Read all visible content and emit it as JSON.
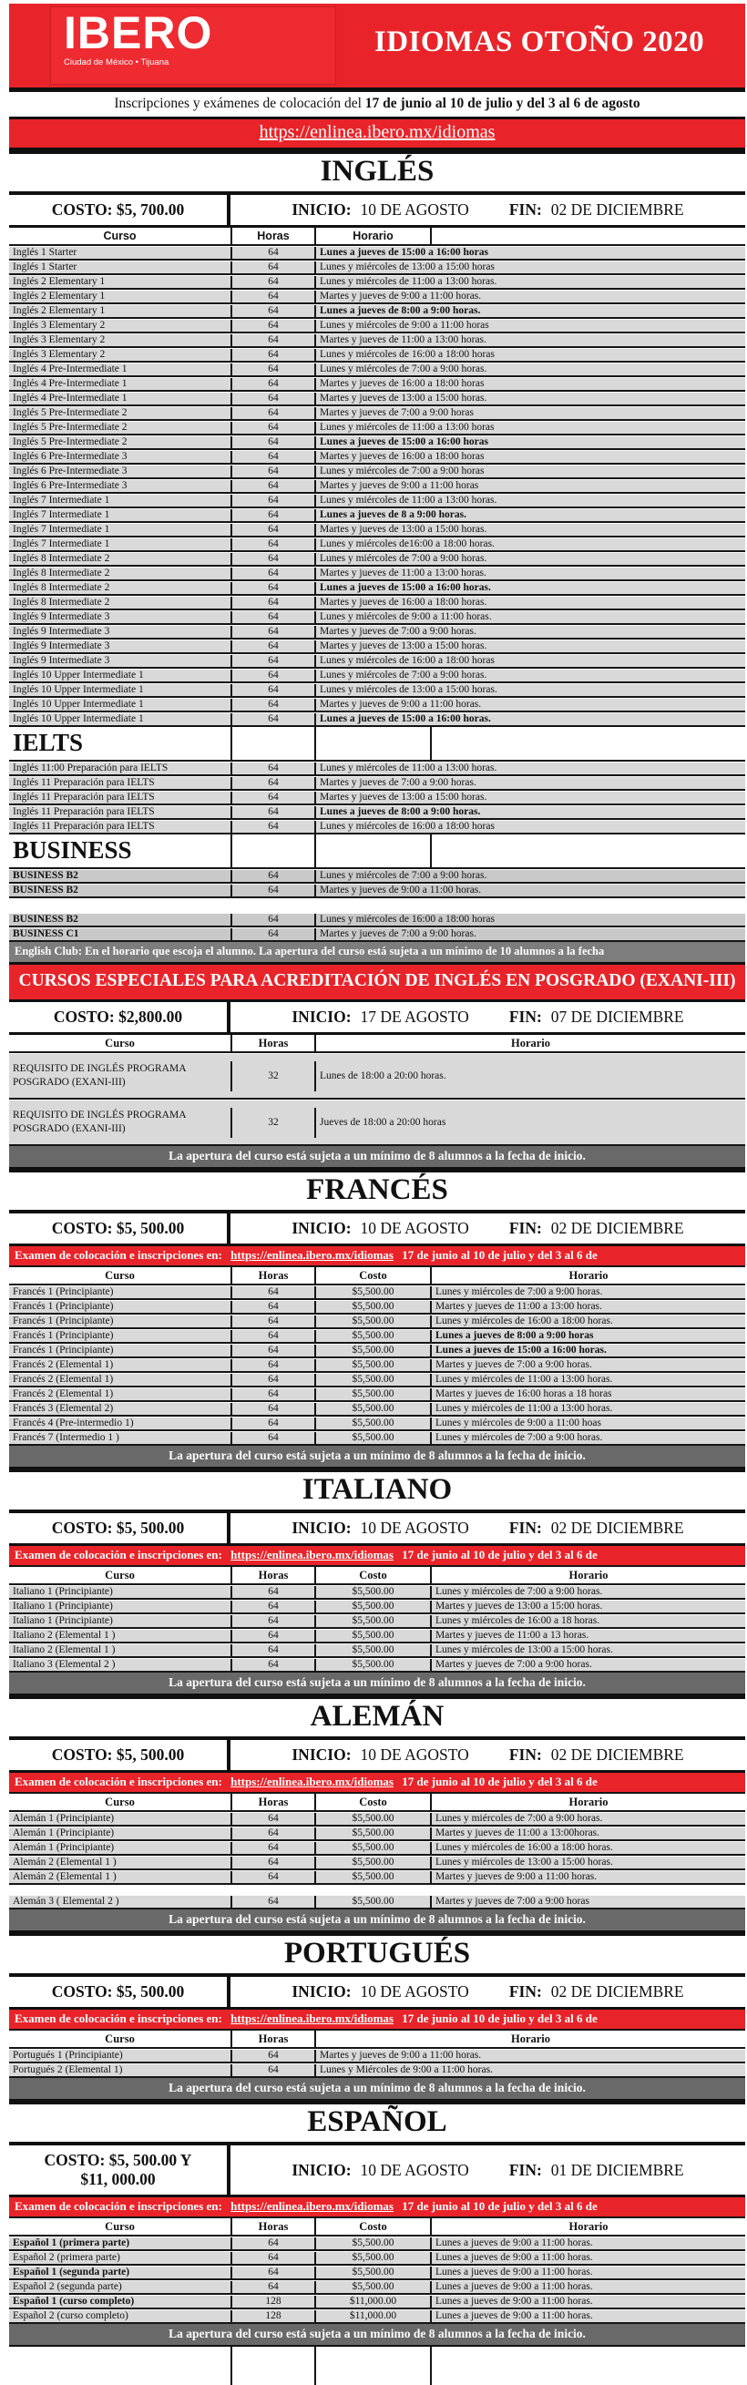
{
  "colors": {
    "brand_red": "#e8242a",
    "row_gray": "#d9d9d9",
    "business_gray": "#c9c9c9",
    "note_gray": "#696969",
    "club_gray": "#7d7d7d"
  },
  "header": {
    "logo_title": "IBERO",
    "logo_subtitle": "Ciudad de México • Tijuana",
    "title": "IDIOMAS OTOÑO 2020",
    "inscription_prefix": "Inscripciones y exámenes de colocación del ",
    "inscription_bold": "17 de junio al 10 de julio y del 3 al 6 de agosto",
    "link": "https://enlinea.ibero.mx/idiomas"
  },
  "exam_banner": {
    "prefix": "Examen de colocación e inscripciones en:",
    "link": "https://enlinea.ibero.mx/idiomas",
    "suffix": "17 de junio al 10 de julio y del 3 al 6 de"
  },
  "apertura_note": "La apertura del curso está sujeta a un mínimo de 8 alumnos a la fecha de inicio.",
  "ingles": {
    "title": "INGLÉS",
    "costo": "COSTO: $5, 700.00",
    "inicio_label": "INICIO:",
    "inicio_value": "10 DE AGOSTO",
    "fin_label": "FIN:",
    "fin_value": "02 DE DICIEMBRE",
    "columns": [
      "Curso",
      "Horas",
      "Horario"
    ],
    "rows": [
      {
        "curso": "Inglés 1 Starter",
        "horas": "64",
        "horario": "Lunes a jueves de 15:00 a 16:00 horas",
        "bold": true
      },
      {
        "curso": "Inglés 1 Starter",
        "horas": "64",
        "horario": "Lunes y miércoles de 13:00 a 15:00 horas"
      },
      {
        "curso": "Inglés 2   Elementary 1",
        "horas": "64",
        "horario": "Lunes y miércoles de 11:00 a 13:00 horas."
      },
      {
        "curso": "Inglés 2   Elementary 1",
        "horas": "64",
        "horario": "Martes y jueves  de  9:00 a 11:00 horas."
      },
      {
        "curso": "Inglés 2   Elementary 1",
        "horas": "64",
        "horario": "Lunes a jueves de 8:00 a 9:00 horas.",
        "bold": true
      },
      {
        "curso": "Inglés 3   Elementary 2",
        "horas": "64",
        "horario": "Lunes y miércoles de 9:00 a 11:00 horas"
      },
      {
        "curso": "Inglés 3   Elementary 2",
        "horas": "64",
        "horario": "Martes y  jueves de 11:00 a 13:00 horas."
      },
      {
        "curso": "Inglés 3   Elementary 2",
        "horas": "64",
        "horario": "Lunes y miércoles de 16:00 a 18:00 horas"
      },
      {
        "curso": "Inglés 4   Pre-Intermediate 1",
        "horas": "64",
        "horario": "Lunes y miércoles de 7:00 a 9:00 horas."
      },
      {
        "curso": "Inglés 4   Pre-Intermediate 1",
        "horas": "64",
        "horario": "Martes y jueves de 16:00 a 18:00 horas"
      },
      {
        "curso": "Inglés 4   Pre-Intermediate 1",
        "horas": "64",
        "horario": "Martes y jueves  de 13:00 a 15:00 horas."
      },
      {
        "curso": "Inglés 5   Pre-Intermediate 2",
        "horas": "64",
        "horario": "Martes y jueves de 7:00 a 9:00 horas"
      },
      {
        "curso": "Inglés 5   Pre-Intermediate 2",
        "horas": "64",
        "horario": "Lunes y miércoles de 11:00 a 13:00 horas"
      },
      {
        "curso": "Inglés 5   Pre-Intermediate 2",
        "horas": "64",
        "horario": "Lunes a jueves de 15:00 a 16:00 horas",
        "bold": true
      },
      {
        "curso": "Inglés 6    Pre-Intermediate 3",
        "horas": "64",
        "horario": "Martes y jueves de 16:00 a 18:00 horas"
      },
      {
        "curso": "Inglés 6    Pre-Intermediate 3",
        "horas": "64",
        "horario": "Lunes y miércoles de 7:00 a 9:00 horas"
      },
      {
        "curso": "Inglés 6    Pre-Intermediate 3",
        "horas": "64",
        "horario": "Martes y jueves  de 9:00 a 11:00 horas"
      },
      {
        "curso": "Inglés 7    Intermediate 1",
        "horas": "64",
        "horario": "Lunes y miércoles  de 11:00 a 13:00 horas."
      },
      {
        "curso": "Inglés 7    Intermediate 1",
        "horas": "64",
        "horario": "Lunes a jueves de 8 a 9:00 horas.",
        "bold": true
      },
      {
        "curso": "Inglés 7    Intermediate 1",
        "horas": "64",
        "horario": "Martes y jueves de 13:00 a 15:00 horas."
      },
      {
        "curso": "Inglés 7    Intermediate 1",
        "horas": "64",
        "horario": "Lunes y miércoles de16:00 a 18:00 horas."
      },
      {
        "curso": "Inglés 8    Intermediate 2",
        "horas": "64",
        "horario": "Lunes y miércoles de 7:00 a 9:00 horas."
      },
      {
        "curso": "Inglés 8    Intermediate 2",
        "horas": "64",
        "horario": "Martes y jueves de 11:00 a 13:00 horas."
      },
      {
        "curso": "Inglés 8    Intermediate 2",
        "horas": "64",
        "horario": "Lunes a jueves de 15:00 a 16:00 horas.",
        "bold": true
      },
      {
        "curso": "Inglés 8    Intermediate 2",
        "horas": "64",
        "horario": "Martes y jueves de 16:00 a 18:00 horas."
      },
      {
        "curso": "Inglés 9   Intermediate 3",
        "horas": "64",
        "horario": "Lunes y miércoles de 9:00 a 11:00 horas."
      },
      {
        "curso": "Inglés 9   Intermediate 3",
        "horas": "64",
        "horario": "Martes y jueves de 7:00 a 9:00 horas."
      },
      {
        "curso": "Inglés 9   Intermediate 3",
        "horas": "64",
        "horario": "Martes y  jueves de 13:00 a 15:00 horas."
      },
      {
        "curso": "Inglés 9   Intermediate 3",
        "horas": "64",
        "horario": "Lunes y miércoles de 16:00 a 18:00 horas"
      },
      {
        "curso": "Inglés 10  Upper Intermediate 1",
        "horas": "64",
        "horario": "Lunes y miércoles de 7:00 a 9:00 horas."
      },
      {
        "curso": "Inglés 10  Upper Intermediate 1",
        "horas": "64",
        "horario": "Lunes y miércoles de 13:00 a 15:00 horas."
      },
      {
        "curso": "Inglés 10  Upper Intermediate 1",
        "horas": "64",
        "horario": "Martes y  jueves de 9:00 a 11:00 horas."
      },
      {
        "curso": "Inglés 10  Upper Intermediate 1",
        "horas": "64",
        "horario": "Lunes a jueves de 15:00 a 16:00 horas.",
        "bold": true
      }
    ],
    "ielts": {
      "title": "IELTS",
      "rows": [
        {
          "curso": "Inglés 11:00  Preparación para IELTS",
          "horas": "64",
          "horario": "Lunes y miércoles de 11:00 a 13:00 horas."
        },
        {
          "curso": "Inglés 11  Preparación para IELTS",
          "horas": "64",
          "horario": "Martes y jueves de 7:00 a 9:00 horas."
        },
        {
          "curso": "Inglés 11  Preparación para IELTS",
          "horas": "64",
          "horario": "Martes y jueves de 13:00 a 15:00 horas."
        },
        {
          "curso": "Inglés 11  Preparación para IELTS",
          "horas": "64",
          "horario": "Lunes a jueves de 8:00 a 9:00 horas.",
          "bold": true
        },
        {
          "curso": "Inglés 11  Preparación para IELTS",
          "horas": "64",
          "horario": "Lunes y miércoles de 16:00 a 18:00 horas"
        }
      ]
    },
    "business": {
      "title": "BUSINESS",
      "rows_a": [
        {
          "curso": "BUSINESS B2",
          "horas": "64",
          "horario": "Lunes y miércoles de 7:00 a 9:00 horas."
        },
        {
          "curso": "BUSINESS B2",
          "horas": "64",
          "horario": "Martes y jueves de 9:00 a 11:00 horas."
        }
      ],
      "rows_b": [
        {
          "curso": "BUSINESS B2",
          "horas": "64",
          "horario": "Lunes y miércoles de 16:00 a 18:00 horas"
        },
        {
          "curso": "BUSINESS C1",
          "horas": "64",
          "horario": "Martes y jueves de 7:00 a 9:00 horas."
        }
      ]
    },
    "english_club_note": "English Club: En el horario que escoja el alumno.  La apertura del curso está sujeta a un mínimo de 10 alumnos a la fecha"
  },
  "exani": {
    "banner": "CURSOS ESPECIALES PARA ACREDITACIÓN DE INGLÉS EN POSGRADO (EXANI-III)",
    "costo": "COSTO: $2,800.00",
    "inicio_label": "INICIO:",
    "inicio_value": "17 DE AGOSTO",
    "fin_label": "FIN:",
    "fin_value": "07 DE DICIEMBRE",
    "columns": [
      "Curso",
      "Horas",
      "Horario"
    ],
    "rows": [
      {
        "curso": "REQUISITO DE INGLÉS PROGRAMA POSGRADO (EXANI-III)",
        "horas": "32",
        "horario": "Lunes de 18:00 a 20:00 horas."
      },
      {
        "curso": "REQUISITO DE INGLÉS PROGRAMA POSGRADO (EXANI-III)",
        "horas": "32",
        "horario": "Jueves de 18:00 a 20:00 horas"
      }
    ]
  },
  "frances": {
    "title": "FRANCÉS",
    "costo": "COSTO: $5, 500.00",
    "inicio_label": "INICIO:",
    "inicio_value": "10 DE AGOSTO",
    "fin_label": "FIN:",
    "fin_value": "02 DE DICIEMBRE",
    "columns": [
      "Curso",
      "Horas",
      "Costo",
      "Horario"
    ],
    "rows": [
      {
        "curso": "Francés 1 (Principiante)",
        "horas": "64",
        "costo": "$5,500.00",
        "horario": "Lunes y miércoles de 7:00 a 9:00 horas."
      },
      {
        "curso": "Francés 1 (Principiante)",
        "horas": "64",
        "costo": "$5,500.00",
        "horario": "Martes y jueves de 11:00 a 13:00 horas."
      },
      {
        "curso": "Francés 1 (Principiante)",
        "horas": "64",
        "costo": "$5,500.00",
        "horario": "Lunes y miércoles de 16:00 a 18:00 horas."
      },
      {
        "curso": "Francés 1 (Principiante)",
        "horas": "64",
        "costo": "$5,500.00",
        "horario": "Lunes a jueves de 8:00 a 9:00 horas",
        "bold": true
      },
      {
        "curso": "Francés 1 (Principiante)",
        "horas": "64",
        "costo": "$5,500.00",
        "horario": "Lunes a jueves de 15:00 a 16:00 horas.",
        "bold": true
      },
      {
        "curso": "Francés 2 (Elemental 1)",
        "horas": "64",
        "costo": "$5,500.00",
        "horario": "Martes y jueves de 7:00 a 9:00 horas."
      },
      {
        "curso": "Francés 2 (Elemental 1)",
        "horas": "64",
        "costo": "$5,500.00",
        "horario": "Lunes y miércoles de 11:00 a 13:00 horas."
      },
      {
        "curso": "Francés 2 (Elemental 1)",
        "horas": "64",
        "costo": "$5,500.00",
        "horario": "Martes y jueves de 16:00 horas a 18 horas"
      },
      {
        "curso": "Francés 3 (Elemental 2)",
        "horas": "64",
        "costo": "$5,500.00",
        "horario": "Lunes y miércoles de 11:00 a 13:00 horas."
      },
      {
        "curso": "Francés 4 (Pre-intermedio 1)",
        "horas": "64",
        "costo": "$5,500.00",
        "horario": "Lunes y miércoles de 9:00 a 11:00 hoas"
      },
      {
        "curso": "Francés 7 (Intermedio 1 )",
        "horas": "64",
        "costo": "$5,500.00",
        "horario": "Lunes y miércoles de 7:00 a 9:00 horas."
      }
    ]
  },
  "italiano": {
    "title": "ITALIANO",
    "costo": "COSTO: $5, 500.00",
    "inicio_label": "INICIO:",
    "inicio_value": "10 DE AGOSTO",
    "fin_label": "FIN:",
    "fin_value": "02 DE DICIEMBRE",
    "columns": [
      "Curso",
      "Horas",
      "Costo",
      "Horario"
    ],
    "rows": [
      {
        "curso": "Italiano 1 (Principiante)",
        "horas": "64",
        "costo": "$5,500.00",
        "horario": "Lunes y miércoles de 7:00 a 9:00 horas."
      },
      {
        "curso": "Italiano 1 (Principiante)",
        "horas": "64",
        "costo": "$5,500.00",
        "horario": "Martes y jueves de 13:00 a 15:00 horas."
      },
      {
        "curso": "Italiano 1 (Principiante)",
        "horas": "64",
        "costo": "$5,500.00",
        "horario": "Lunes y miércoles de 16:00 a 18 horas."
      },
      {
        "curso": "Italiano 2 (Elemental 1 )",
        "horas": "64",
        "costo": "$5,500.00",
        "horario": "Martes y jueves de 11:00 a 13 horas."
      },
      {
        "curso": "Italiano 2 (Elemental 1 )",
        "horas": "64",
        "costo": "$5,500.00",
        "horario": "Lunes y miércoles de 13:00 a 15:00 horas."
      },
      {
        "curso": "Italiano 3 (Elemental 2 )",
        "horas": "64",
        "costo": "$5,500.00",
        "horario": "Martes y jueves de 7:00 a 9:00 horas."
      }
    ]
  },
  "aleman": {
    "title": "ALEMÁN",
    "costo": "COSTO: $5, 500.00",
    "inicio_label": "INICIO:",
    "inicio_value": "10 DE AGOSTO",
    "fin_label": "FIN:",
    "fin_value": "02 DE DICIEMBRE",
    "columns": [
      "Curso",
      "Horas",
      "Costo",
      "Horario"
    ],
    "rows_a": [
      {
        "curso": "Alemán 1 (Principiante)",
        "horas": "64",
        "costo": "$5,500.00",
        "horario": "Lunes y miércoles de 7:00 a 9:00 horas."
      },
      {
        "curso": "Alemán 1 (Principiante)",
        "horas": "64",
        "costo": "$5,500.00",
        "horario": "Martes y jueves de 11:00 a 13:00horas."
      },
      {
        "curso": "Alemán 1 (Principiante)",
        "horas": "64",
        "costo": "$5,500.00",
        "horario": "Lunes y miércoles de 16:00 a 18:00 horas."
      },
      {
        "curso": "Alemán 2  (Elemental 1 )",
        "horas": "64",
        "costo": "$5,500.00",
        "horario": "Lunes y miércoles de 13:00 a 15:00 horas."
      },
      {
        "curso": "Alemán 2  (Elemental 1 )",
        "horas": "64",
        "costo": "$5,500.00",
        "horario": "Martes y jueves de 9:00 a 11:00 horas."
      }
    ],
    "rows_b": [
      {
        "curso": "Alemán 3 ( Elemental 2 )",
        "horas": "64",
        "costo": "$5,500.00",
        "horario": "Martes y jueves de 7:00 a 9:00 horas"
      }
    ]
  },
  "portugues": {
    "title": "PORTUGUÉS",
    "costo": "COSTO: $5, 500.00",
    "inicio_label": "INICIO:",
    "inicio_value": "10 DE AGOSTO",
    "fin_label": "FIN:",
    "fin_value": "02 DE DICIEMBRE",
    "columns": [
      "Curso",
      "Horas",
      "Horario"
    ],
    "rows": [
      {
        "curso": "Portugués 1 (Principiante)",
        "horas": "64",
        "horario": "Martes y jueves de 9:00 a 11:00 horas."
      },
      {
        "curso": "Portugués 2 (Elemental 1)",
        "horas": "64",
        "horario": "Lunes y Miércoles de 9:00 a 11:00 horas."
      }
    ]
  },
  "espanol": {
    "title": "ESPAÑOL",
    "costo_line1": "COSTO: $5, 500.00 Y",
    "costo_line2": "$11, 000.00",
    "inicio_label": "INICIO:",
    "inicio_value": "10 DE AGOSTO",
    "fin_label": "FIN:",
    "fin_value": "01 DE DICIEMBRE",
    "columns": [
      "Curso",
      "Horas",
      "Costo",
      "Horario"
    ],
    "rows": [
      {
        "curso": "Español 1 (primera parte)",
        "horas": "64",
        "costo": "$5,500.00",
        "horario": "Lunes a jueves  de 9:00 a 11:00 horas.",
        "bold_curso": true
      },
      {
        "curso": "Español 2  (primera parte)",
        "horas": "64",
        "costo": "$5,500.00",
        "horario": "Lunes a jueves  de 9:00 a 11:00 horas."
      },
      {
        "curso": "Español 1 (segunda parte)",
        "horas": "64",
        "costo": "$5,500.00",
        "horario": "Lunes a jueves  de 9:00 a 11:00 horas.",
        "bold_curso": true
      },
      {
        "curso": "Español 2  (segunda parte)",
        "horas": "64",
        "costo": "$5,500.00",
        "horario": "Lunes a jueves  de 9:00 a 11:00 horas."
      },
      {
        "curso": "Español 1 (curso completo)",
        "horas": "128",
        "costo": "$11,000.00",
        "horario": "Lunes a jueves  de 9:00 a 11:00 horas.",
        "bold_curso": true
      },
      {
        "curso": "Español 2  (curso completo)",
        "horas": "128",
        "costo": "$11,000.00",
        "horario": "Lunes a jueves  de 9:00 a 11:00 horas."
      }
    ]
  }
}
